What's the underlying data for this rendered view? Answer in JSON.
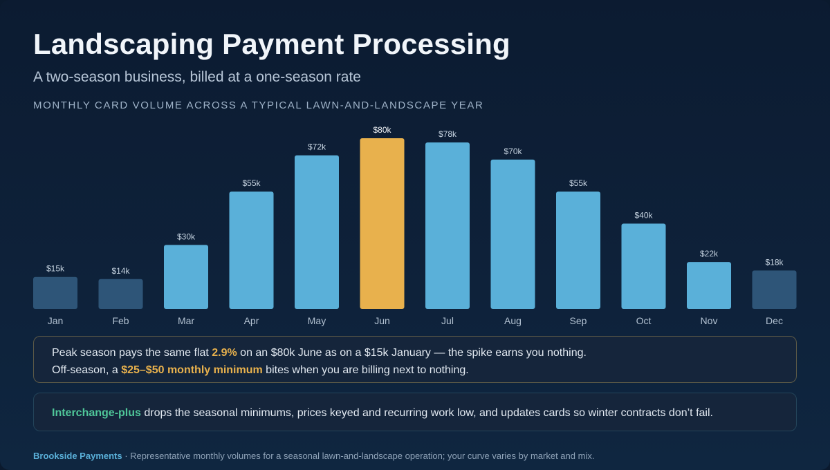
{
  "title": "Landscaping Payment Processing",
  "subtitle": "A two-season business, billed at a one-season rate",
  "chart_label": "MONTHLY CARD VOLUME ACROSS A TYPICAL LAWN-AND-LANDSCAPE YEAR",
  "chart_data": {
    "type": "bar",
    "categories": [
      "Jan",
      "Feb",
      "Mar",
      "Apr",
      "May",
      "Jun",
      "Jul",
      "Aug",
      "Sep",
      "Oct",
      "Nov",
      "Dec"
    ],
    "values": [
      15,
      14,
      30,
      55,
      72,
      80,
      78,
      70,
      55,
      40,
      22,
      18
    ],
    "data_labels": [
      "$15k",
      "$14k",
      "$30k",
      "$55k",
      "$72k",
      "$80k",
      "$78k",
      "$70k",
      "$55k",
      "$40k",
      "$22k",
      "$18k"
    ],
    "unit": "$k",
    "ylim": [
      0,
      80
    ],
    "grid": false,
    "highlight": "Jun",
    "off_season": [
      "Jan",
      "Feb",
      "Dec"
    ],
    "colors": {
      "active": "#5ab0d9",
      "off_season": "#2e5578",
      "highlight": "#e8b14d",
      "label": "#c6d3e0",
      "highlight_label": "#f2f5f8",
      "axis_label": "#b3c2d2"
    }
  },
  "notes": {
    "peak": {
      "text_1": "Peak season pays the same flat ",
      "rate": "2.9%",
      "text_2": " on an $80k June as on a $15k January — the spike earns you nothing.",
      "text_3": "Off-season, a ",
      "minimum": "$25–$50 monthly minimum",
      "text_4": " bites when you are billing next to nothing."
    },
    "solution": {
      "highlight": "Interchange-plus",
      "text": " drops the seasonal minimums, prices keyed and recurring work low, and updates cards so winter contracts don’t fail."
    }
  },
  "footer": {
    "brand": "Brookside Payments",
    "text": " · Representative monthly volumes for a seasonal lawn-and-landscape operation; your curve varies by market and mix."
  }
}
